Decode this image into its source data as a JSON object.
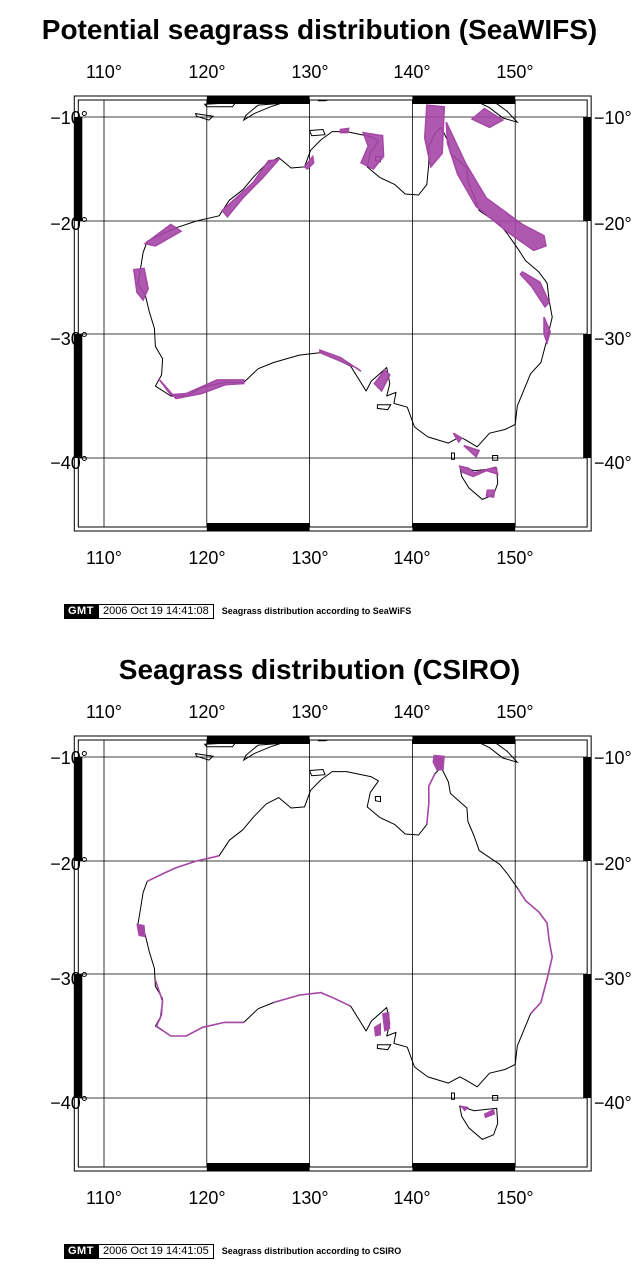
{
  "maps": [
    {
      "title": "Potential seagrass distribution (SeaWIFS)",
      "lon_labels": [
        "110°",
        "120°",
        "130°",
        "140°",
        "150°"
      ],
      "lat_labels": [
        "−10°",
        "−20°",
        "−30°",
        "−40°"
      ],
      "extent": {
        "lon": [
          107.5,
          157
        ],
        "lat": [
          -8,
          -46
        ]
      },
      "seagrass_level": "extensive",
      "stamp": {
        "logo": "GMT",
        "datetime": "2006 Oct 19 14:41:08",
        "caption": "Seagrass distribution according to SeaWiFS"
      }
    },
    {
      "title": "Seagrass distribution (CSIRO)",
      "lon_labels": [
        "110°",
        "120°",
        "130°",
        "140°",
        "150°"
      ],
      "lat_labels": [
        "−10°",
        "−20°",
        "−30°",
        "−40°"
      ],
      "extent": {
        "lon": [
          107.5,
          157
        ],
        "lat": [
          -8,
          -46
        ]
      },
      "seagrass_level": "sparse",
      "stamp": {
        "logo": "GMT",
        "datetime": "2006 Oct 19 14:41:05",
        "caption": "Seagrass distribution according to CSIRO"
      }
    }
  ],
  "colors": {
    "seagrass": "#a646a6",
    "coast": "#000000",
    "frame": "#000000",
    "background": "#ffffff"
  }
}
